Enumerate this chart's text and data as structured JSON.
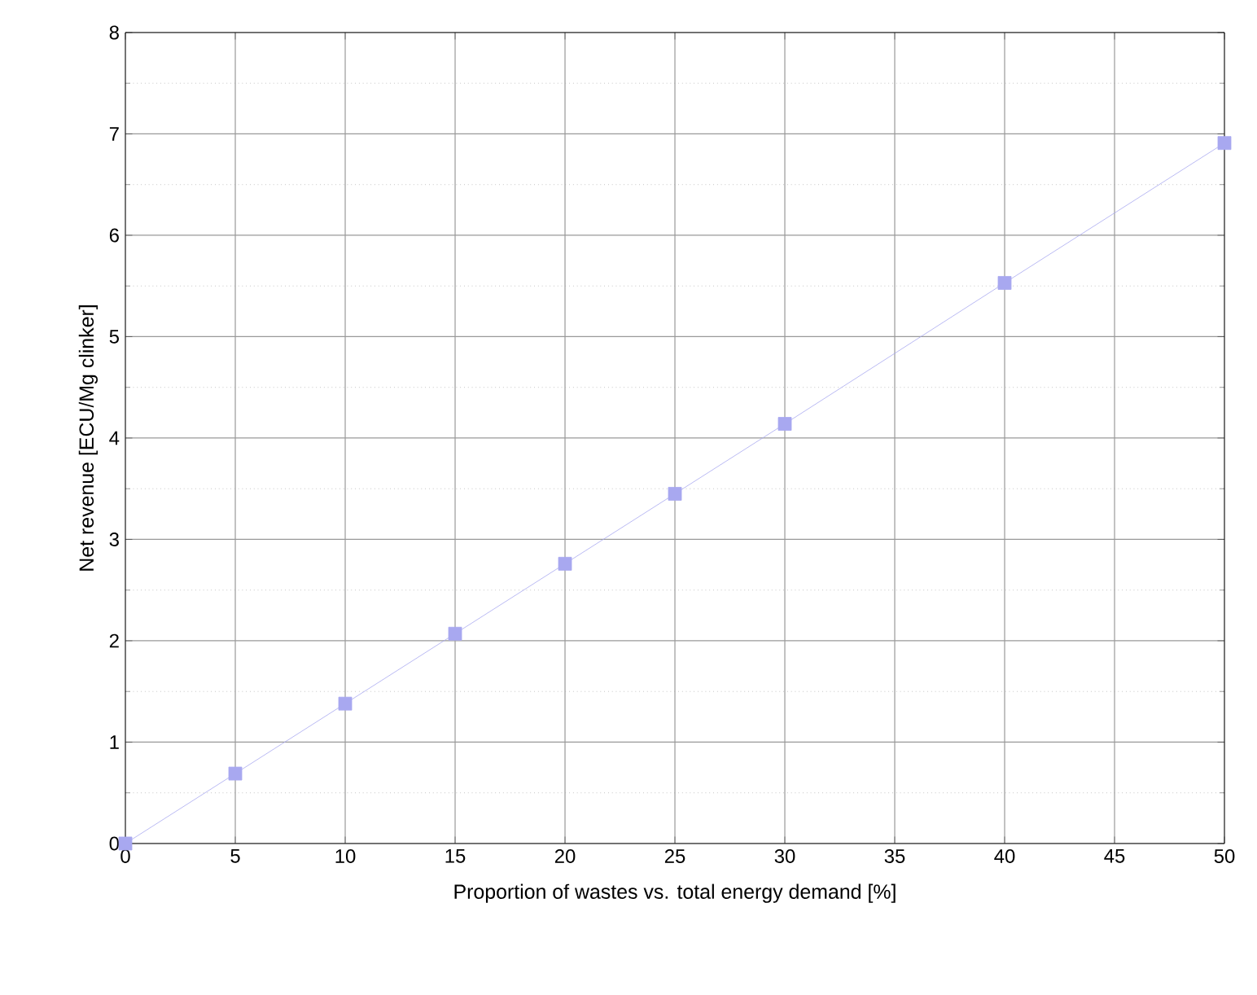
{
  "chart_data": {
    "type": "line",
    "xlabel": "Proportion of wastes vs. total energy demand [%]",
    "ylabel": "Net revenue [ECU/Mg clinker]",
    "x": [
      0,
      5,
      10,
      15,
      20,
      25,
      30,
      40,
      50
    ],
    "series": [
      {
        "color": "#a8a8f0",
        "values": [
          0,
          0.69,
          1.38,
          2.07,
          2.76,
          3.45,
          4.14,
          5.53,
          6.91
        ]
      }
    ],
    "xlim": [
      0,
      50
    ],
    "ylim": [
      0,
      8
    ],
    "xticks": [
      0,
      5,
      10,
      15,
      20,
      25,
      30,
      35,
      40,
      45,
      50
    ],
    "yticks": [
      0,
      1,
      2,
      3,
      4,
      5,
      6,
      7,
      8
    ],
    "grid": true,
    "marker": "square",
    "line_style": "solid"
  }
}
